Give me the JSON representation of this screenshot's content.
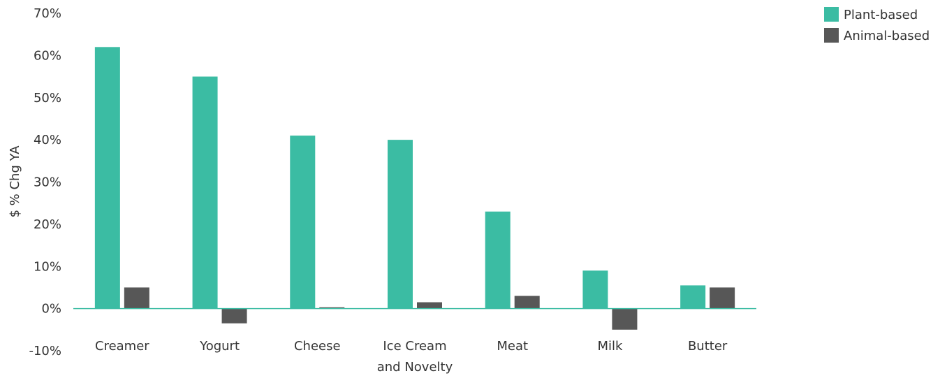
{
  "chart_data": {
    "type": "bar",
    "ylabel": "$ % Chg YA",
    "xlabel": "",
    "ylim": [
      -10,
      70
    ],
    "yticks": [
      -10,
      0,
      10,
      20,
      30,
      40,
      50,
      60,
      70
    ],
    "ytick_format": "{v}%",
    "categories": [
      [
        "Creamer"
      ],
      [
        "Yogurt"
      ],
      [
        "Cheese"
      ],
      [
        "Ice Cream",
        "and Novelty"
      ],
      [
        "Meat"
      ],
      [
        "Milk"
      ],
      [
        "Butter"
      ]
    ],
    "series": [
      {
        "name": "Plant-based",
        "color": "#3bbca3",
        "values": [
          62,
          55,
          41,
          40,
          23,
          9,
          5.5
        ]
      },
      {
        "name": "Animal-based",
        "color": "#575757",
        "values": [
          5,
          -3.5,
          0.3,
          1.5,
          3,
          -5,
          5
        ]
      }
    ],
    "legend_position": "top-right",
    "grid": false,
    "zero_line_color": "#3bbca3"
  }
}
